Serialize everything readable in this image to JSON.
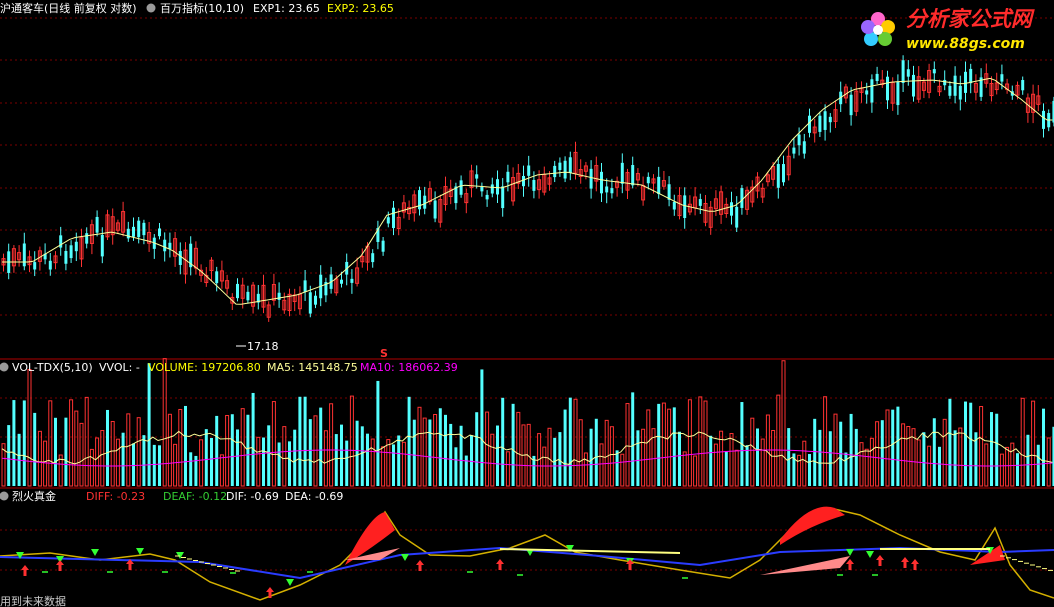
{
  "price_panel": {
    "title": "沪通客车(日线 前复权 对数)",
    "indicator_name": "百万指标(10,10)",
    "exp1": "EXP1: 23.65",
    "exp2": "EXP2: 23.65",
    "low_label": "17.18",
    "marker_label": "S"
  },
  "watermark": {
    "name": "分析家公式网",
    "url": "www.88gs.com"
  },
  "volume_panel": {
    "title": "VOL-TDX(5,10)",
    "vol": "VVOL: -",
    "volume": "VOLUME: 197206.80",
    "ma5": "MA5: 145148.75",
    "ma10": "MA10: 186062.39"
  },
  "macd_panel": {
    "title": "烈火真金",
    "diff": "DIFF: -0.23",
    "deaf": "DEAF: -0.12",
    "dif": "DIF: -0.69",
    "dea": "DEA: -0.69"
  },
  "footer": {
    "notice": "用到未来数据"
  },
  "colors": {
    "up": "#ff3232",
    "down": "#54ffff",
    "ma": "#ffff99",
    "ma10": "#ff00ff",
    "grid": "#7a0000",
    "divider": "#b00000"
  }
}
